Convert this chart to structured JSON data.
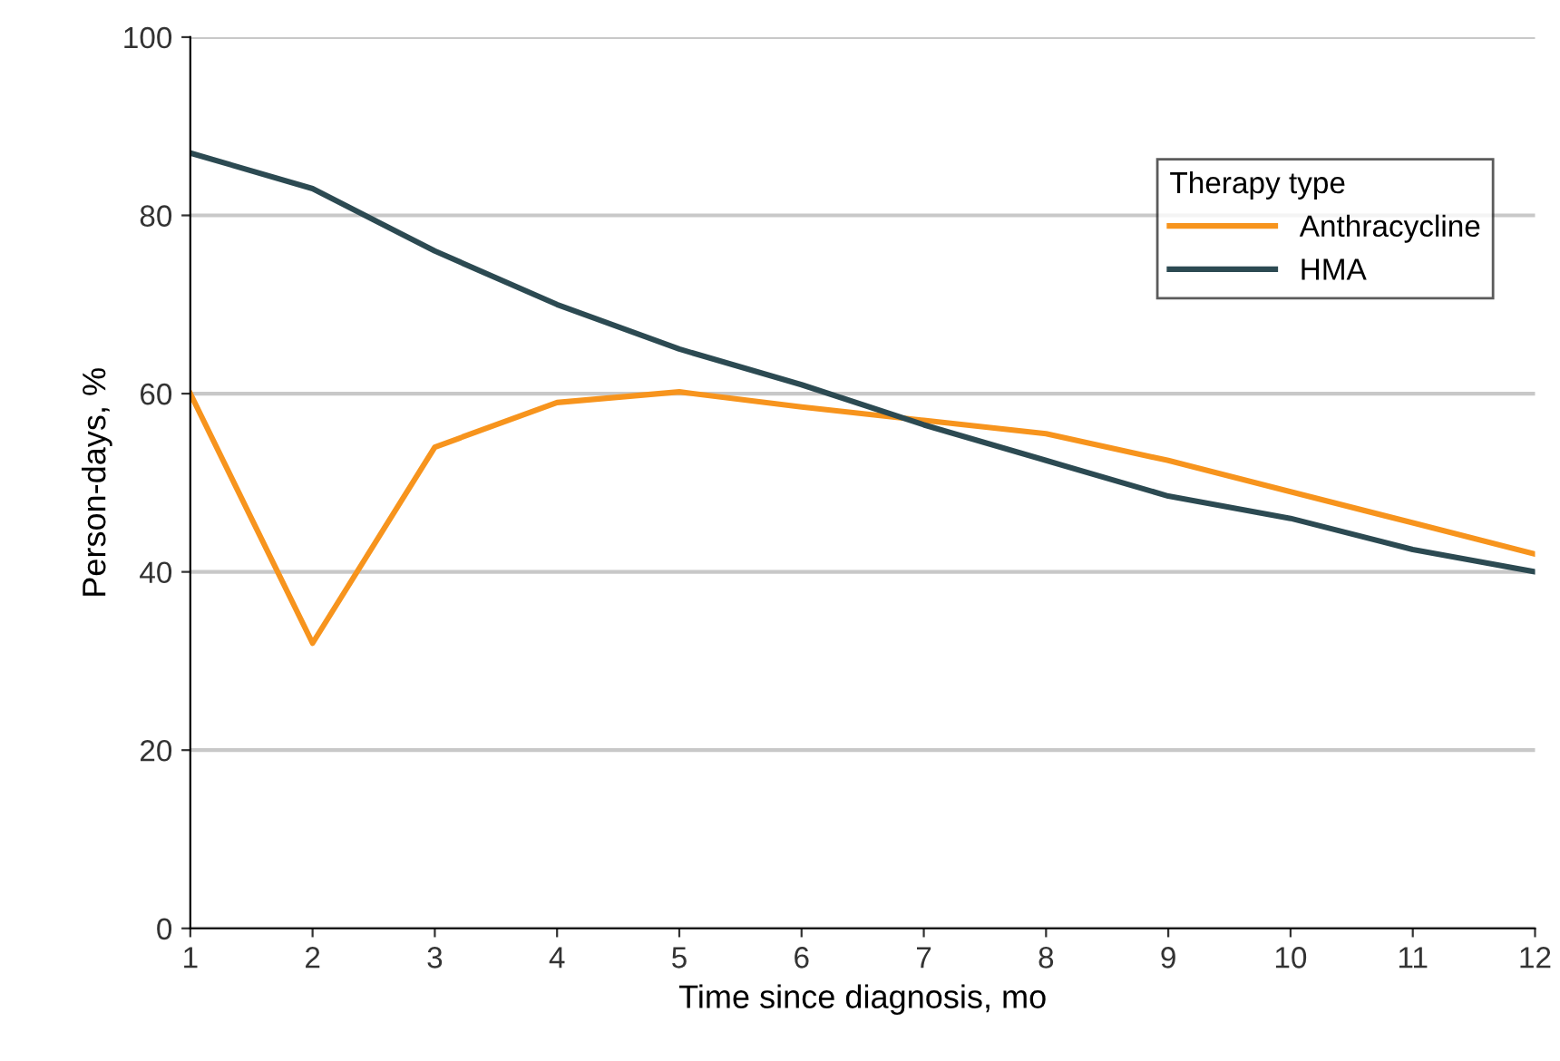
{
  "chart_data": {
    "type": "line",
    "xlabel": "Time since diagnosis, mo",
    "ylabel": "Person-days, %",
    "legend_title": "Therapy type",
    "x": [
      1,
      2,
      3,
      4,
      5,
      6,
      7,
      8,
      9,
      10,
      11,
      12
    ],
    "series": [
      {
        "name": "Anthracycline",
        "color": "#f7941d",
        "values": [
          60,
          32,
          54,
          59,
          60.2,
          58.5,
          57,
          55.5,
          52.5,
          49,
          45.5,
          42
        ]
      },
      {
        "name": "HMA",
        "color": "#2c4a52",
        "values": [
          87,
          83,
          76,
          70,
          65,
          61,
          56.5,
          52.5,
          48.5,
          46,
          42.5,
          40
        ]
      }
    ],
    "xlim": [
      1,
      12
    ],
    "xticks": [
      1,
      2,
      3,
      4,
      5,
      6,
      7,
      8,
      9,
      10,
      11,
      12
    ],
    "ylim": [
      0,
      100
    ],
    "yticks": [
      0,
      20,
      40,
      60,
      80,
      100
    ],
    "grid": "y",
    "legend": "top right",
    "marker": "none",
    "line_style": "solid"
  }
}
